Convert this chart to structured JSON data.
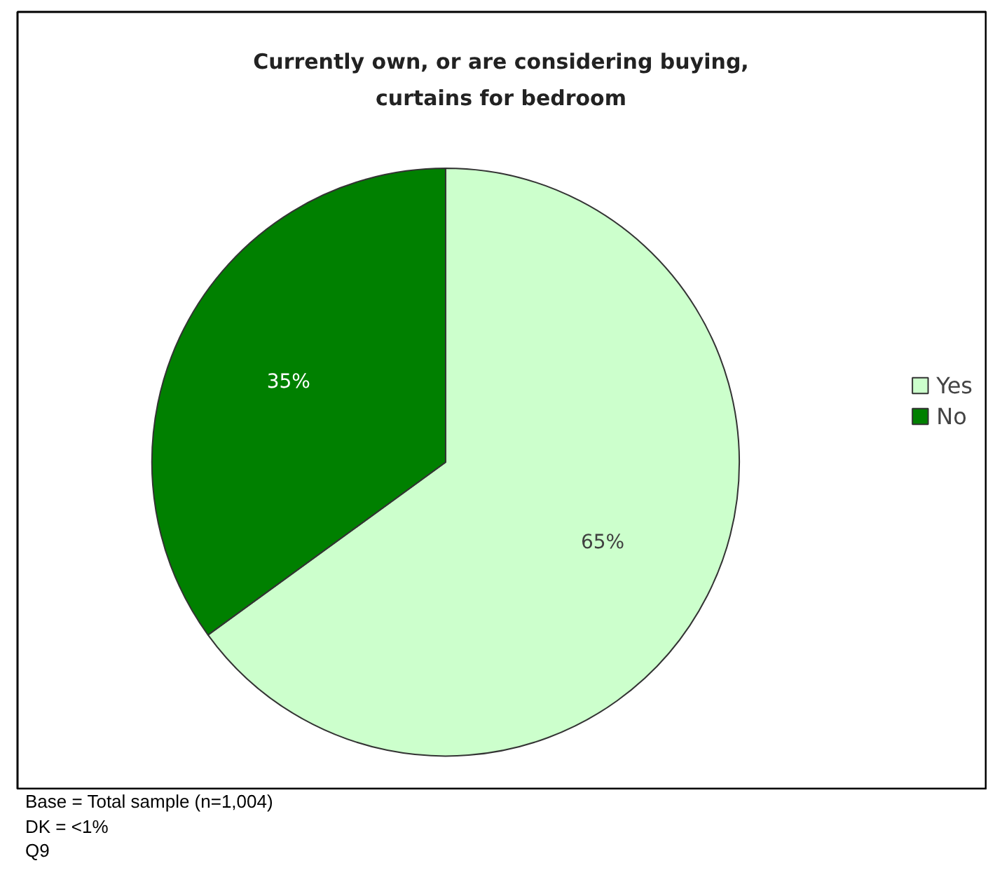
{
  "chart_data": {
    "type": "pie",
    "title": "Currently own, or are considering buying, curtains for bedroom",
    "categories": [
      "Yes",
      "No"
    ],
    "values": [
      65,
      35
    ],
    "colors": [
      "#ccffcc",
      "#008000"
    ],
    "value_labels": [
      "65%",
      "35%"
    ],
    "legend": "right",
    "annotations": [
      "Base = Total sample (n=1,004)",
      "DK = <1%",
      "Q9"
    ]
  }
}
